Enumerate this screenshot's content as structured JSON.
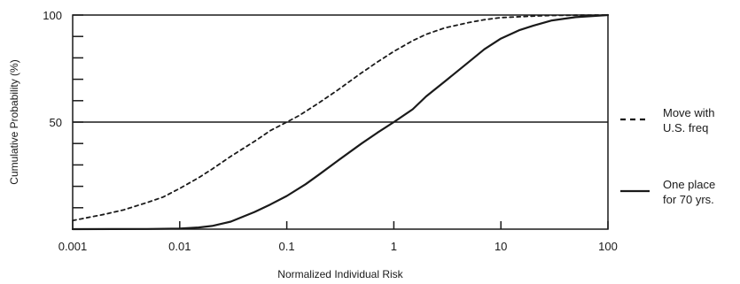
{
  "chart_data": {
    "type": "line",
    "title": "",
    "xlabel": "Normalized Individual Risk",
    "ylabel": "Cumulative Probability (%)",
    "x_scale": "log",
    "xlim": [
      0.001,
      100
    ],
    "ylim": [
      0,
      100
    ],
    "x_ticks": [
      {
        "value": 0.001,
        "label": "0.001"
      },
      {
        "value": 0.01,
        "label": "0.01"
      },
      {
        "value": 0.1,
        "label": "0.1"
      },
      {
        "value": 1,
        "label": "1"
      },
      {
        "value": 10,
        "label": "10"
      },
      {
        "value": 100,
        "label": "100"
      }
    ],
    "y_ticks": [
      {
        "value": 50,
        "label": "50"
      },
      {
        "value": 100,
        "label": "100"
      }
    ],
    "y_minor_ticks": [
      10,
      20,
      30,
      40,
      60,
      70,
      80,
      90
    ],
    "reference_lines": [
      {
        "axis": "y",
        "value": 50
      }
    ],
    "grid": false,
    "legend_position": "right",
    "series": [
      {
        "legend": [
          "Move with",
          "U.S. freq"
        ],
        "style": "dashed",
        "color": "#1a1a1a",
        "x": [
          0.001,
          0.002,
          0.003,
          0.005,
          0.007,
          0.01,
          0.015,
          0.02,
          0.03,
          0.05,
          0.07,
          0.1,
          0.13,
          0.2,
          0.3,
          0.5,
          0.7,
          1,
          1.5,
          2,
          3,
          5,
          7,
          10,
          20,
          30,
          50,
          100
        ],
        "y": [
          4,
          7,
          9,
          12.5,
          15,
          19,
          24,
          28,
          34,
          41,
          46,
          50,
          53,
          59,
          65,
          73,
          78,
          83,
          88,
          91,
          94,
          96.5,
          97.8,
          98.8,
          99.5,
          99.8,
          99.9,
          100
        ]
      },
      {
        "legend": [
          "One place",
          "for 70 yrs."
        ],
        "style": "solid",
        "color": "#1a1a1a",
        "x": [
          0.001,
          0.005,
          0.01,
          0.015,
          0.02,
          0.03,
          0.05,
          0.07,
          0.1,
          0.15,
          0.2,
          0.3,
          0.5,
          0.7,
          1,
          1.5,
          2,
          3,
          5,
          7,
          10,
          15,
          20,
          30,
          50,
          100
        ],
        "y": [
          0,
          0.1,
          0.3,
          0.8,
          1.5,
          3.5,
          8,
          11.5,
          15.5,
          21,
          25.5,
          32,
          40,
          45,
          50,
          56,
          62,
          69,
          78,
          84,
          89,
          93,
          95,
          97.5,
          99,
          100
        ]
      }
    ]
  }
}
